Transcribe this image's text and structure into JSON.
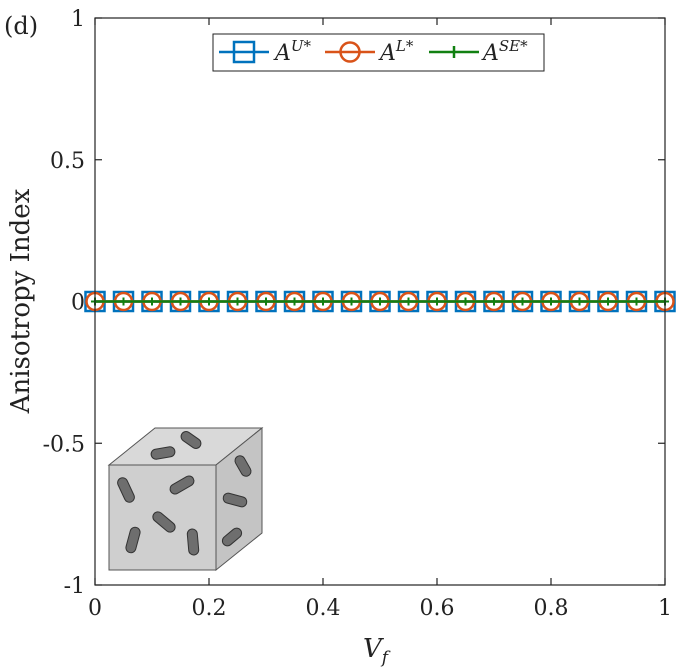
{
  "panel_label": "(d)",
  "chart_data": {
    "type": "line",
    "xlabel": "V",
    "xlabel_sub": "f",
    "ylabel": "Anisotropy Index",
    "xlim": [
      0,
      1
    ],
    "ylim": [
      -1,
      1
    ],
    "xticks": [
      0,
      0.2,
      0.4,
      0.6,
      0.8,
      1
    ],
    "xtick_labels": [
      "0",
      "0.2",
      "0.4",
      "0.6",
      "0.8",
      "1"
    ],
    "yticks": [
      -1,
      -0.5,
      0,
      0.5,
      1
    ],
    "ytick_labels": [
      "-1",
      "-0.5",
      "0",
      "0.5",
      "1"
    ],
    "grid": false,
    "legend_placement": "top-center",
    "x": [
      0,
      0.05,
      0.1,
      0.15,
      0.2,
      0.25,
      0.3,
      0.35,
      0.4,
      0.45,
      0.5,
      0.55,
      0.6,
      0.65,
      0.7,
      0.75,
      0.8,
      0.85,
      0.9,
      0.95,
      1
    ],
    "series": [
      {
        "name": "A",
        "sup": "U*",
        "marker": "square",
        "color": "#0072BD",
        "values": [
          0,
          0,
          0,
          0,
          0,
          0,
          0,
          0,
          0,
          0,
          0,
          0,
          0,
          0,
          0,
          0,
          0,
          0,
          0,
          0,
          0
        ]
      },
      {
        "name": "A",
        "sup": "L*",
        "marker": "circle",
        "color": "#D95319",
        "values": [
          0,
          0,
          0,
          0,
          0,
          0,
          0,
          0,
          0,
          0,
          0,
          0,
          0,
          0,
          0,
          0,
          0,
          0,
          0,
          0,
          0
        ]
      },
      {
        "name": "A",
        "sup": "SE*",
        "marker": "plus",
        "color": "#118011",
        "values": [
          0,
          0,
          0,
          0,
          0,
          0,
          0,
          0,
          0,
          0,
          0,
          0,
          0,
          0,
          0,
          0,
          0,
          0,
          0,
          0,
          0
        ]
      }
    ]
  }
}
